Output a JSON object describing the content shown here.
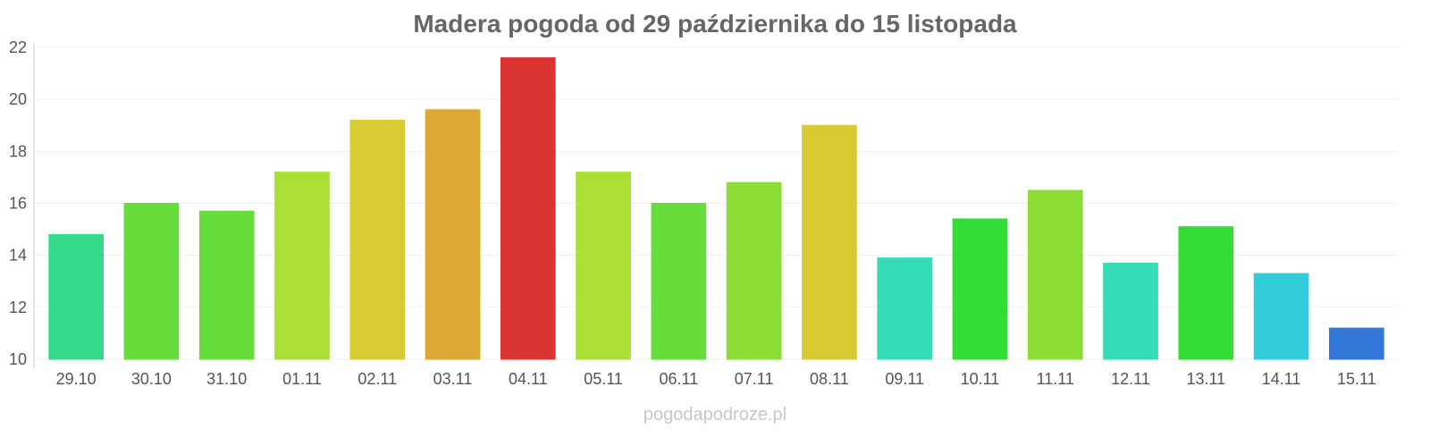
{
  "chart_data": {
    "type": "bar",
    "title": "Madera pogoda od 29 października do 15 listopada",
    "xlabel": "",
    "ylabel": "",
    "ylim": [
      10,
      22
    ],
    "yticks": [
      "10",
      "12",
      "14",
      "16",
      "18",
      "20",
      "22"
    ],
    "categories": [
      "29.10",
      "30.10",
      "31.10",
      "01.11",
      "02.11",
      "03.11",
      "04.11",
      "05.11",
      "06.11",
      "07.11",
      "08.11",
      "09.11",
      "10.11",
      "11.11",
      "12.11",
      "13.11",
      "14.11",
      "15.11"
    ],
    "values": [
      14.8,
      16.0,
      15.7,
      17.2,
      19.2,
      19.6,
      21.6,
      17.2,
      16.0,
      16.8,
      19.0,
      13.9,
      15.4,
      16.5,
      13.7,
      15.1,
      13.3,
      11.2
    ],
    "colors": [
      "#36d88a",
      "#66dd3a",
      "#66dd3a",
      "#aadf36",
      "#d9cc33",
      "#dca833",
      "#dc3333",
      "#aadf36",
      "#66dd3a",
      "#8cde36",
      "#d9c933",
      "#36dcb8",
      "#33dd36",
      "#8cde36",
      "#36dcb8",
      "#33dd36",
      "#33ccd9",
      "#3377d9"
    ],
    "grid": true,
    "legend": "none"
  },
  "watermark": "pogodapodroze.pl"
}
